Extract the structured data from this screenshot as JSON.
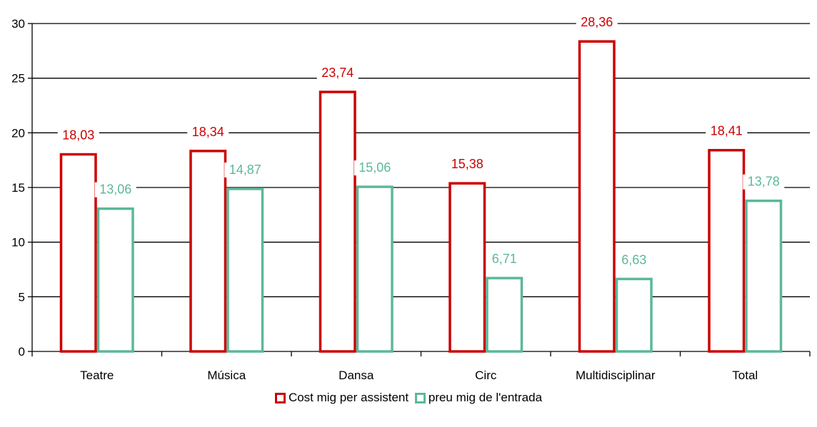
{
  "chart_data": {
    "type": "bar",
    "categories": [
      "Teatre",
      "Música",
      "Dansa",
      "Circ",
      "Multidisciplinar",
      "Total"
    ],
    "series": [
      {
        "name": "Cost mig per assistent",
        "values": [
          18.03,
          18.34,
          23.74,
          15.38,
          28.36,
          18.41
        ],
        "labels": [
          "18,03",
          "18,34",
          "23,74",
          "15,38",
          "28,36",
          "18,41"
        ],
        "color": "#cc0000"
      },
      {
        "name": "preu mig de l'entrada",
        "values": [
          13.06,
          14.87,
          15.06,
          6.71,
          6.63,
          13.78
        ],
        "labels": [
          "13,06",
          "14,87",
          "15,06",
          "6,71",
          "6,63",
          "13,78"
        ],
        "color": "#5cb89a"
      }
    ],
    "ylim": [
      0,
      30
    ],
    "yticks": [
      "0",
      "5",
      "10",
      "15",
      "20",
      "25",
      "30"
    ],
    "ytick_values": [
      0,
      5,
      10,
      15,
      20,
      25,
      30
    ],
    "grid": true,
    "legend_position": "bottom"
  }
}
